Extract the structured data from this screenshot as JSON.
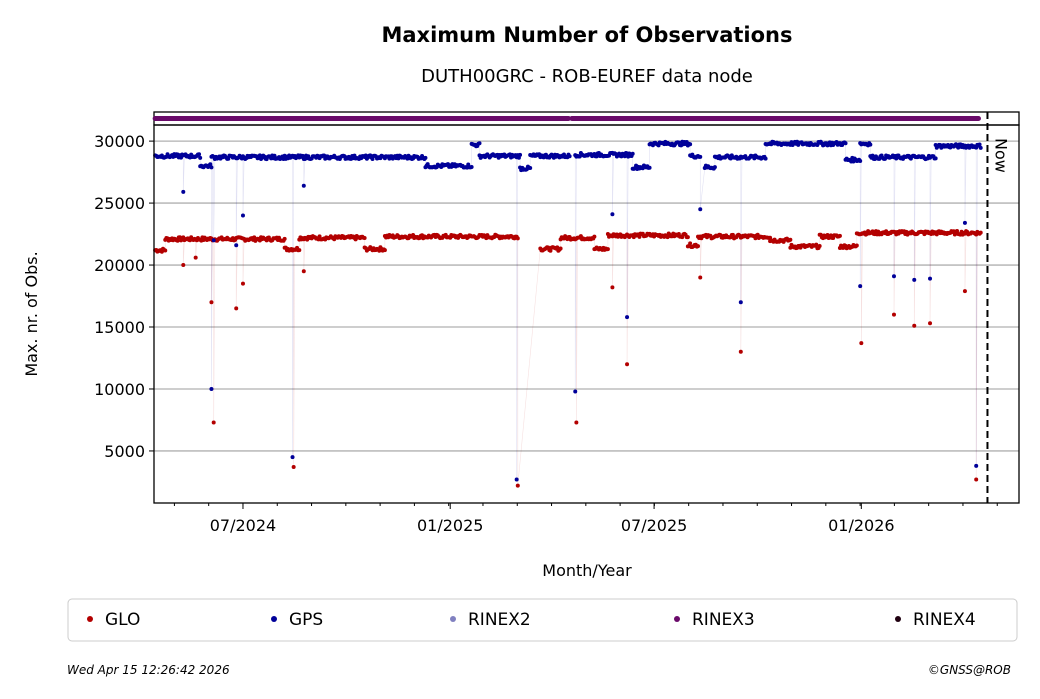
{
  "chart_data": {
    "type": "scatter",
    "title": "Maximum Number of Observations",
    "subtitle": "DUTH00GRC - ROB-EUREF data node",
    "xlabel": "Month/Year",
    "ylabel": "Max. nr. of Obs.",
    "x_unit": "days since 2024-07-01",
    "xlim": [
      -79,
      689
    ],
    "ylim": [
      800,
      31300
    ],
    "yticks": [
      5000,
      10000,
      15000,
      20000,
      25000,
      30000
    ],
    "xticks": [
      {
        "day": 0,
        "label": "07/2024"
      },
      {
        "day": 184,
        "label": "01/2025"
      },
      {
        "day": 365,
        "label": "07/2025"
      },
      {
        "day": 549,
        "label": "01/2026"
      }
    ],
    "now_day": 661,
    "now_label": "Now",
    "grid": "horizontal",
    "legend_position": "bottom",
    "series": [
      {
        "name": "GLO",
        "color": "#b30000",
        "segments": [
          [
            -78,
            -69,
            21200
          ],
          [
            -69,
            37,
            22100
          ],
          [
            37,
            50,
            21300
          ],
          [
            50,
            108,
            22200
          ],
          [
            108,
            126,
            21300
          ],
          [
            126,
            244,
            22300
          ],
          [
            264,
            282,
            21300
          ],
          [
            282,
            312,
            22200
          ],
          [
            312,
            324,
            21300
          ],
          [
            324,
            395,
            22400
          ],
          [
            395,
            404,
            21600
          ],
          [
            404,
            468,
            22300
          ],
          [
            468,
            486,
            22000
          ],
          [
            486,
            512,
            21500
          ],
          [
            512,
            530,
            22300
          ],
          [
            530,
            545,
            21500
          ],
          [
            545,
            655,
            22600
          ]
        ],
        "outliers": [
          [
            -53,
            20000
          ],
          [
            -42,
            20600
          ],
          [
            -28,
            17000
          ],
          [
            -26,
            7300
          ],
          [
            -6,
            16500
          ],
          [
            0,
            18500
          ],
          [
            45,
            3700
          ],
          [
            54,
            19500
          ],
          [
            244,
            2200
          ],
          [
            296,
            7300
          ],
          [
            328,
            18200
          ],
          [
            341,
            12000
          ],
          [
            406,
            19000
          ],
          [
            442,
            13000
          ],
          [
            549,
            13700
          ],
          [
            578,
            16000
          ],
          [
            596,
            15100
          ],
          [
            610,
            15300
          ],
          [
            641,
            17900
          ],
          [
            651,
            2700
          ]
        ]
      },
      {
        "name": "GPS",
        "color": "#000099",
        "segments": [
          [
            -78,
            -56,
            28800
          ],
          [
            -56,
            -38,
            28800
          ],
          [
            -38,
            -28,
            28000
          ],
          [
            -28,
            162,
            28700
          ],
          [
            162,
            203,
            28000
          ],
          [
            203,
            210,
            29700
          ],
          [
            210,
            246,
            28800
          ],
          [
            246,
            255,
            27800
          ],
          [
            255,
            290,
            28800
          ],
          [
            295,
            346,
            28900
          ],
          [
            346,
            361,
            27900
          ],
          [
            361,
            397,
            29800
          ],
          [
            397,
            406,
            28800
          ],
          [
            410,
            419,
            27900
          ],
          [
            419,
            464,
            28700
          ],
          [
            464,
            535,
            29800
          ],
          [
            535,
            548,
            28500
          ],
          [
            548,
            557,
            29800
          ],
          [
            557,
            615,
            28700
          ],
          [
            615,
            655,
            29600
          ]
        ],
        "outliers": [
          [
            -53,
            25900
          ],
          [
            -28,
            10000
          ],
          [
            -26,
            22000
          ],
          [
            -6,
            21600
          ],
          [
            0,
            24000
          ],
          [
            44,
            4500
          ],
          [
            54,
            26400
          ],
          [
            243,
            2700
          ],
          [
            295,
            9800
          ],
          [
            328,
            24100
          ],
          [
            341,
            15800
          ],
          [
            406,
            24500
          ],
          [
            442,
            17000
          ],
          [
            548,
            18300
          ],
          [
            578,
            19100
          ],
          [
            596,
            18800
          ],
          [
            610,
            18900
          ],
          [
            641,
            23400
          ],
          [
            651,
            3800
          ]
        ]
      },
      {
        "name": "RINEX2",
        "color": "#8080c0",
        "segments": [],
        "outliers": []
      },
      {
        "name": "RINEX3",
        "color": "#6a0a6a",
        "availability": [
          [
            -78,
            289
          ],
          [
            292,
            653
          ]
        ]
      },
      {
        "name": "RINEX4",
        "color": "#200010",
        "segments": [],
        "outliers": []
      }
    ]
  },
  "footer": {
    "timestamp": "Wed Apr 15 12:26:42 2026",
    "credit": "©GNSS@ROB"
  }
}
